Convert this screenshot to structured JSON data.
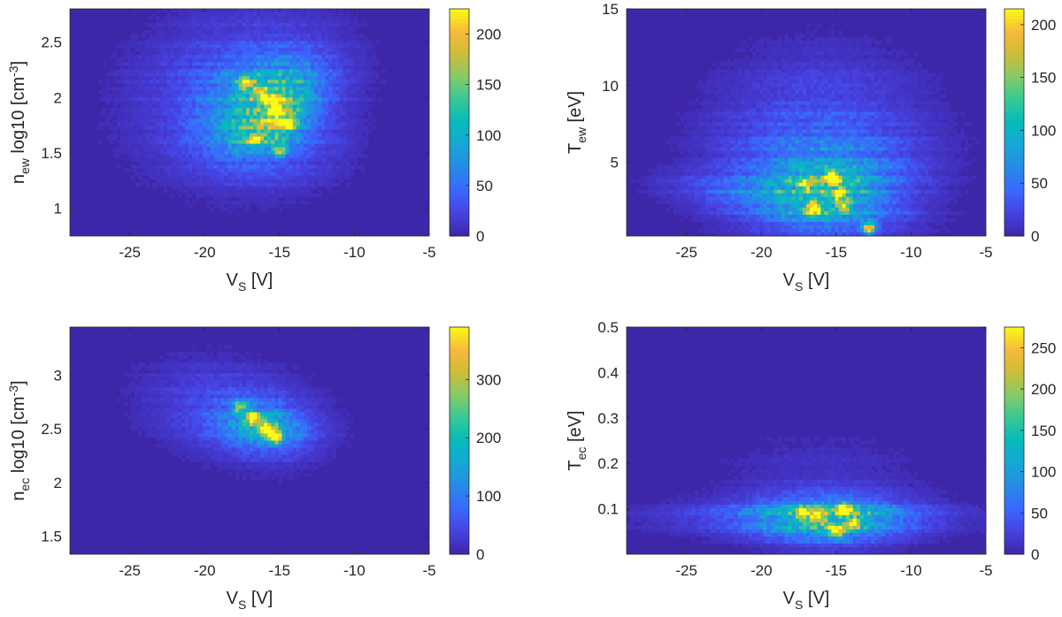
{
  "figure": {
    "colormap": "parula",
    "background_color": "#3e26a8",
    "axis_color": "#262626"
  },
  "chart_data": [
    {
      "type": "heatmap",
      "panel": "top-left",
      "xlabel": {
        "main": "V",
        "sub": "S",
        "suffix": " [V]"
      },
      "ylabel": {
        "main": "n",
        "sub": "ew",
        "suffix": " log10 [cm",
        "sup": "-3",
        "end": "]"
      },
      "xlim": [
        -29,
        -5
      ],
      "ylim": [
        0.75,
        2.8
      ],
      "xticks": [
        -25,
        -20,
        -15,
        -10,
        -5
      ],
      "xtick_labels": [
        "-25",
        "-20",
        "-15",
        "-10",
        "-5"
      ],
      "yticks": [
        1,
        1.5,
        2,
        2.5
      ],
      "ytick_labels": [
        "1",
        "1.5",
        "2",
        "2.5"
      ],
      "colorbar": {
        "min": 0,
        "max": 225,
        "ticks": [
          0,
          50,
          100,
          150,
          200
        ],
        "tick_labels": [
          "0",
          "50",
          "100",
          "150",
          "200"
        ]
      },
      "blobs": [
        {
          "x": -18,
          "y": 2.05,
          "sx": 4.5,
          "sy": 0.5,
          "peak": 35,
          "angle": -0.3
        },
        {
          "x": -16,
          "y": 1.95,
          "sx": 2.2,
          "sy": 0.3,
          "peak": 95,
          "angle": -0.5
        },
        {
          "x": -15.2,
          "y": 1.8,
          "sx": 1.2,
          "sy": 0.18,
          "peak": 80,
          "angle": -0.5
        },
        {
          "x": -15,
          "y": 1.55,
          "sx": 3.0,
          "sy": 0.25,
          "peak": 25,
          "angle": -0.2
        }
      ],
      "hotspots": [
        {
          "x": -17.2,
          "y": 2.13,
          "v": 190
        },
        {
          "x": -15.5,
          "y": 1.97,
          "v": 220
        },
        {
          "x": -14.5,
          "y": 1.76,
          "v": 210
        },
        {
          "x": -16.2,
          "y": 2.05,
          "v": 150
        },
        {
          "x": -15.2,
          "y": 1.88,
          "v": 170
        },
        {
          "x": -16.7,
          "y": 1.63,
          "v": 150
        },
        {
          "x": -15.0,
          "y": 1.52,
          "v": 130
        }
      ]
    },
    {
      "type": "heatmap",
      "panel": "top-right",
      "xlabel": {
        "main": "V",
        "sub": "S",
        "suffix": " [V]"
      },
      "ylabel": {
        "main": "T",
        "sub": "ew",
        "suffix": " [eV]"
      },
      "xlim": [
        -29,
        -5
      ],
      "ylim": [
        0.2,
        15
      ],
      "xticks": [
        -25,
        -20,
        -15,
        -10,
        -5
      ],
      "xtick_labels": [
        "-25",
        "-20",
        "-15",
        "-10",
        "-5"
      ],
      "yticks": [
        5,
        10,
        15
      ],
      "ytick_labels": [
        "5",
        "10",
        "15"
      ],
      "colorbar": {
        "min": 0,
        "max": 215,
        "ticks": [
          0,
          50,
          100,
          150,
          200
        ],
        "tick_labels": [
          "0",
          "50",
          "100",
          "150",
          "200"
        ]
      },
      "blobs": [
        {
          "x": -16,
          "y": 4.5,
          "sx": 4.5,
          "sy": 3.5,
          "peak": 40,
          "angle": 0
        },
        {
          "x": -15.5,
          "y": 3.0,
          "sx": 2.8,
          "sy": 1.5,
          "peak": 75,
          "angle": 0
        },
        {
          "x": -20,
          "y": 2.8,
          "sx": 4.0,
          "sy": 0.8,
          "peak": 35,
          "angle": -0.15
        },
        {
          "x": -16,
          "y": 8.0,
          "sx": 5.0,
          "sy": 3.5,
          "peak": 12,
          "angle": 0
        }
      ],
      "hotspots": [
        {
          "x": -16.5,
          "y": 2.0,
          "v": 210
        },
        {
          "x": -15.3,
          "y": 4.0,
          "v": 200
        },
        {
          "x": -14.8,
          "y": 3.0,
          "v": 180
        },
        {
          "x": -12.8,
          "y": 0.7,
          "v": 170
        },
        {
          "x": -14.5,
          "y": 2.2,
          "v": 150
        },
        {
          "x": -17.0,
          "y": 3.5,
          "v": 130
        }
      ]
    },
    {
      "type": "heatmap",
      "panel": "bottom-left",
      "xlabel": {
        "main": "V",
        "sub": "S",
        "suffix": " [V]"
      },
      "ylabel": {
        "main": "n",
        "sub": "ec",
        "suffix": " log10 [cm",
        "sup": "-3",
        "end": "]"
      },
      "xlim": [
        -29,
        -5
      ],
      "ylim": [
        1.33,
        3.45
      ],
      "xticks": [
        -25,
        -20,
        -15,
        -10,
        -5
      ],
      "xtick_labels": [
        "-25",
        "-20",
        "-15",
        "-10",
        "-5"
      ],
      "yticks": [
        1.5,
        2,
        2.5,
        3
      ],
      "ytick_labels": [
        "1.5",
        "2",
        "2.5",
        "3"
      ],
      "colorbar": {
        "min": 0,
        "max": 390,
        "ticks": [
          0,
          100,
          200,
          300
        ],
        "tick_labels": [
          "0",
          "100",
          "200",
          "300"
        ]
      },
      "blobs": [
        {
          "x": -18,
          "y": 2.65,
          "sx": 4.2,
          "sy": 0.28,
          "peak": 55,
          "angle": -0.6
        },
        {
          "x": -16,
          "y": 2.52,
          "sx": 2.0,
          "sy": 0.15,
          "peak": 130,
          "angle": -0.65
        }
      ],
      "hotspots": [
        {
          "x": -16.8,
          "y": 2.6,
          "v": 350
        },
        {
          "x": -15.8,
          "y": 2.5,
          "v": 370
        },
        {
          "x": -15.3,
          "y": 2.42,
          "v": 300
        },
        {
          "x": -17.6,
          "y": 2.7,
          "v": 250
        }
      ]
    },
    {
      "type": "heatmap",
      "panel": "bottom-right",
      "xlabel": {
        "main": "V",
        "sub": "S",
        "suffix": " [V]"
      },
      "ylabel": {
        "main": "T",
        "sub": "ec",
        "suffix": "  [eV]"
      },
      "xlim": [
        -29,
        -5
      ],
      "ylim": [
        0,
        0.5
      ],
      "xticks": [
        -25,
        -20,
        -15,
        -10,
        -5
      ],
      "xtick_labels": [
        "-25",
        "-20",
        "-15",
        "-10",
        "-5"
      ],
      "yticks": [
        0.1,
        0.2,
        0.3,
        0.4,
        0.5
      ],
      "ytick_labels": [
        "0.1",
        "0.2",
        "0.3",
        "0.4",
        "0.5"
      ],
      "colorbar": {
        "min": 0,
        "max": 275,
        "ticks": [
          0,
          50,
          100,
          150,
          200,
          250
        ],
        "tick_labels": [
          "0",
          "50",
          "100",
          "150",
          "200",
          "250"
        ]
      },
      "blobs": [
        {
          "x": -15.5,
          "y": 0.075,
          "sx": 3.2,
          "sy": 0.035,
          "peak": 110,
          "angle": 0
        },
        {
          "x": -17,
          "y": 0.08,
          "sx": 6.5,
          "sy": 0.025,
          "peak": 45,
          "angle": 0
        },
        {
          "x": -16,
          "y": 0.15,
          "sx": 5.0,
          "sy": 0.08,
          "peak": 15,
          "angle": 0
        }
      ],
      "hotspots": [
        {
          "x": -16.2,
          "y": 0.08,
          "v": 230
        },
        {
          "x": -15.0,
          "y": 0.05,
          "v": 250
        },
        {
          "x": -14.5,
          "y": 0.1,
          "v": 210
        },
        {
          "x": -17.2,
          "y": 0.09,
          "v": 180
        },
        {
          "x": -13.8,
          "y": 0.07,
          "v": 170
        }
      ]
    }
  ]
}
